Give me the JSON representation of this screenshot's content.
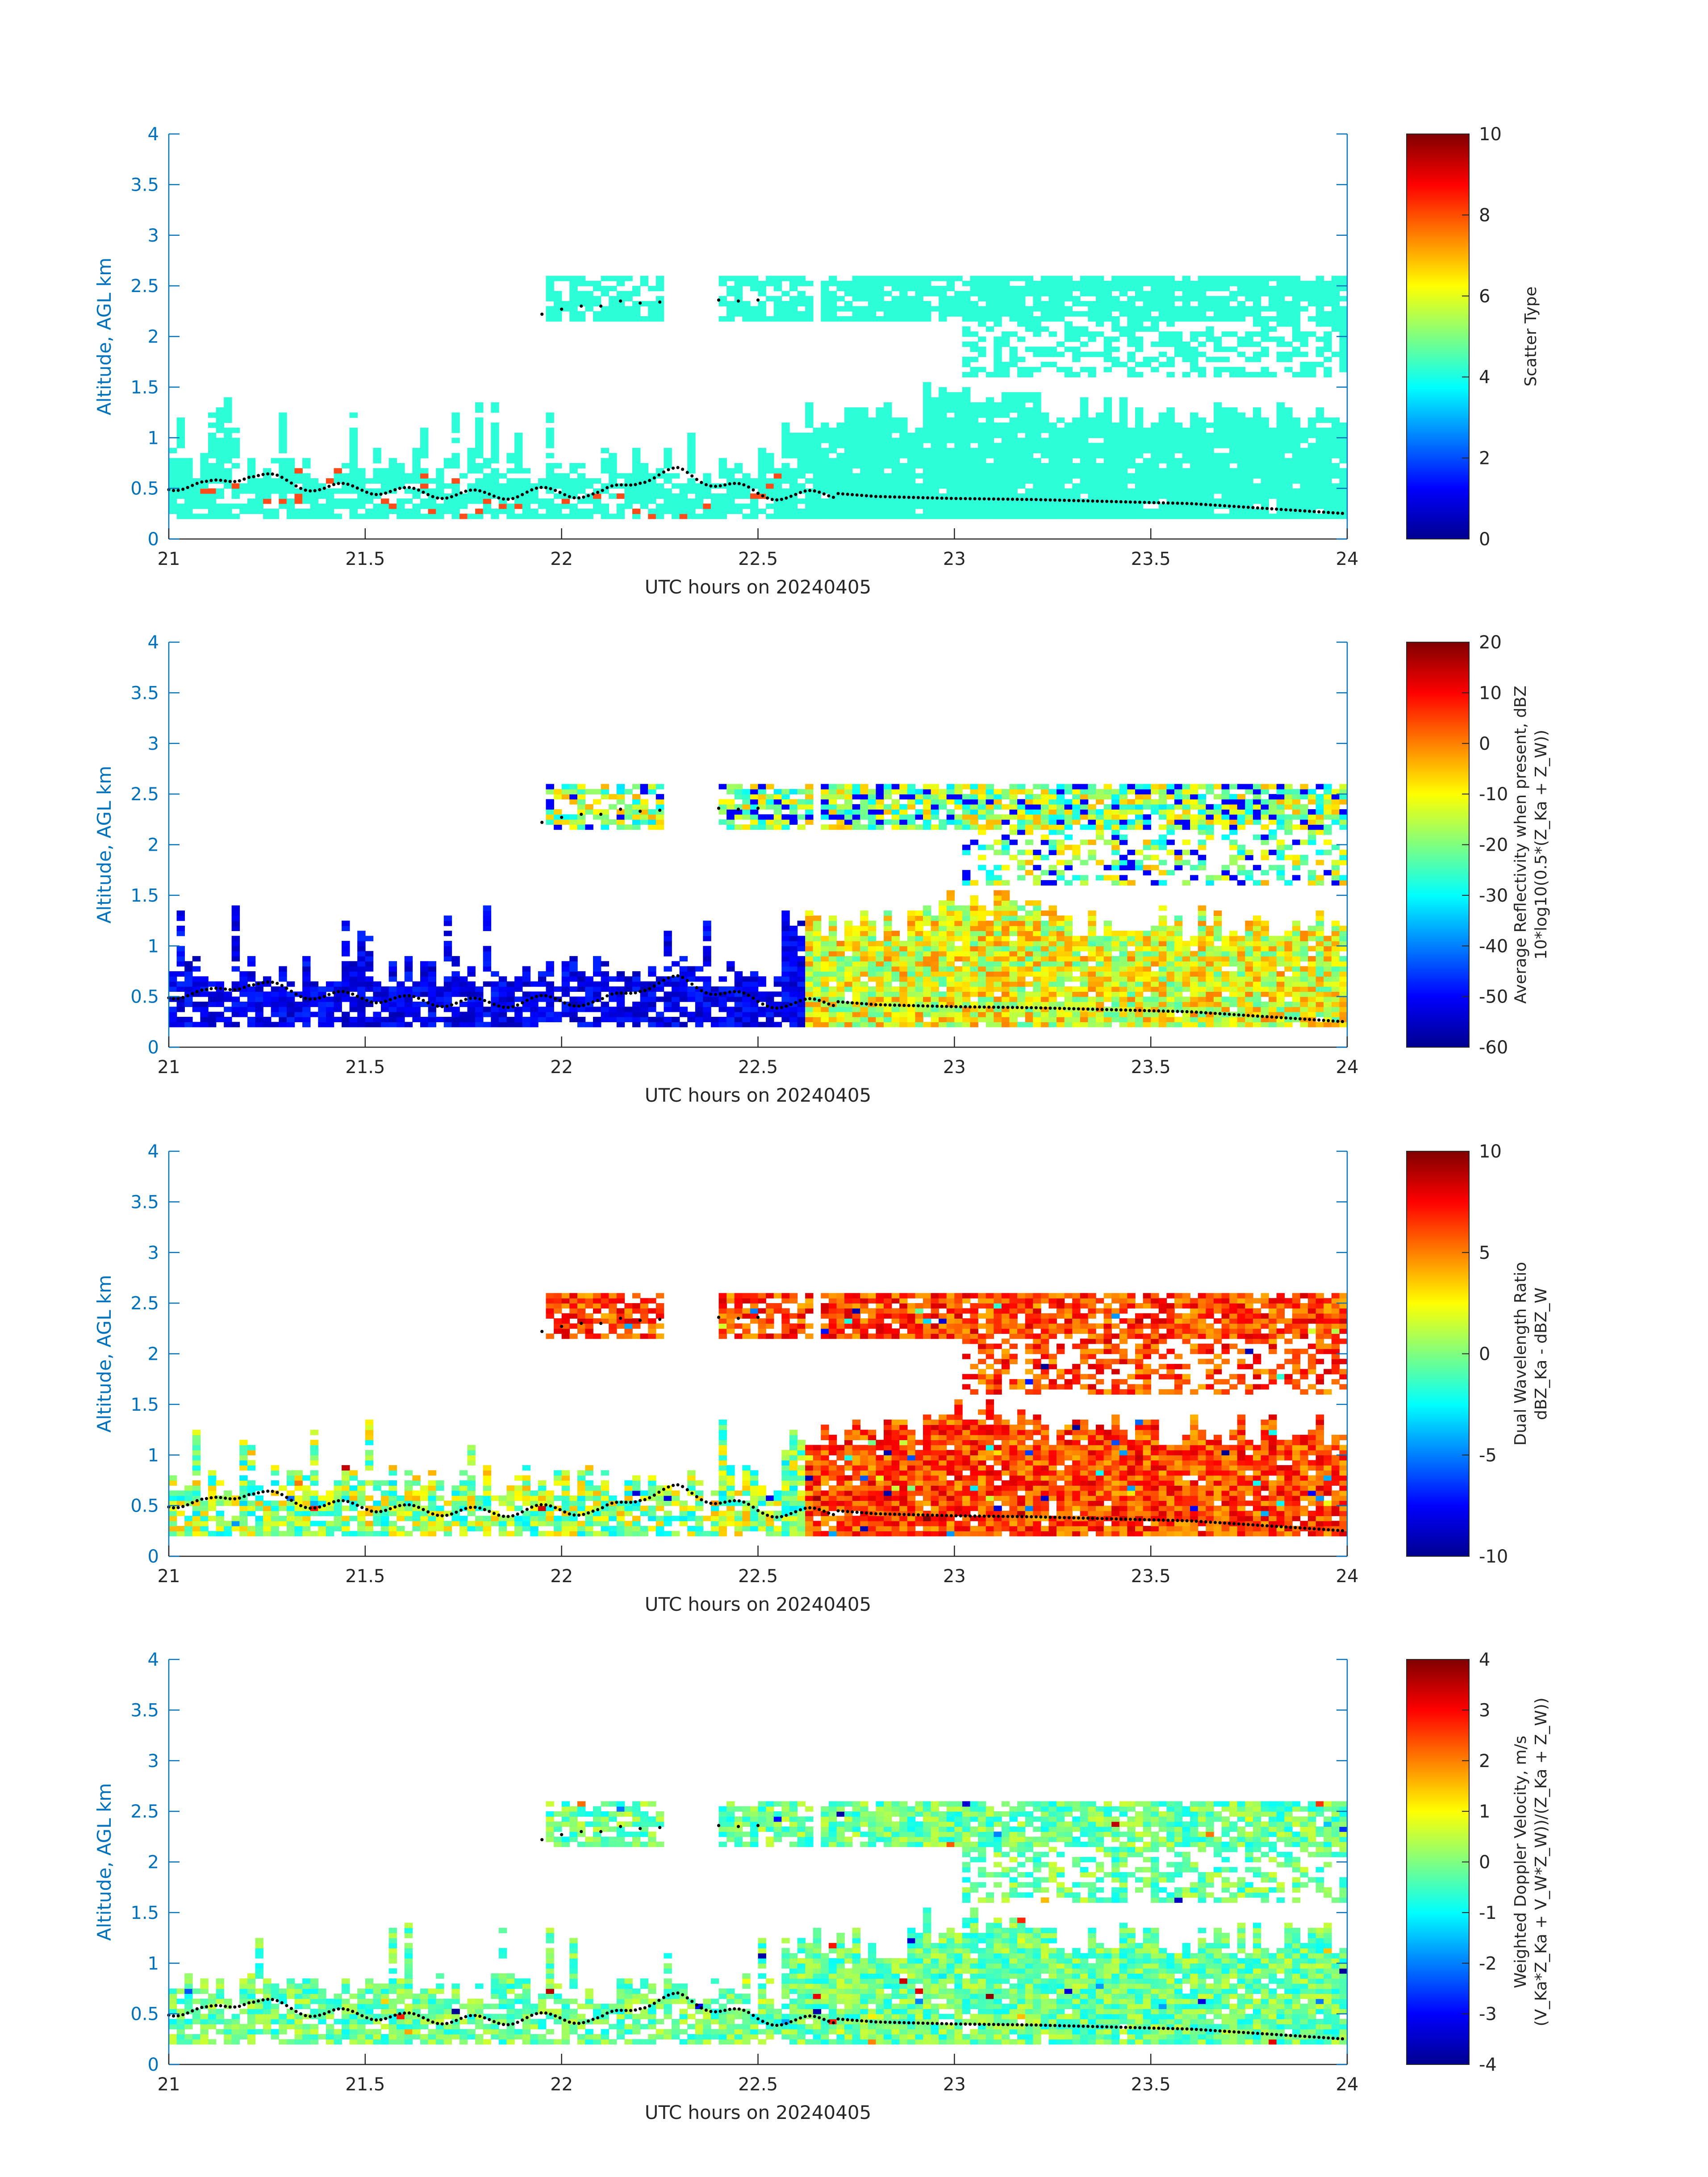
{
  "chart_data": [
    {
      "type": "heatmap",
      "xlabel": "UTC hours on 20240405",
      "ylabel": "Altitude, AGL km",
      "xlim": [
        21,
        24
      ],
      "ylim": [
        0,
        4
      ],
      "xticks": [
        "21",
        "21.5",
        "22",
        "22.5",
        "23",
        "23.5",
        "24"
      ],
      "yticks": [
        "0",
        "0.5",
        "1",
        "1.5",
        "2",
        "2.5",
        "3",
        "3.5",
        "4"
      ],
      "colorbar": {
        "label_lines": [
          "Scatter Type"
        ],
        "range": [
          0,
          10
        ],
        "ticks": [
          "0",
          "2",
          "4",
          "6",
          "8",
          "10"
        ]
      },
      "colormap": "jet",
      "dominant_value": 4
    },
    {
      "type": "heatmap",
      "xlabel": "UTC hours on 20240405",
      "ylabel": "Altitude, AGL km",
      "xlim": [
        21,
        24
      ],
      "ylim": [
        0,
        4
      ],
      "xticks": [
        "21",
        "21.5",
        "22",
        "22.5",
        "23",
        "23.5",
        "24"
      ],
      "yticks": [
        "0",
        "0.5",
        "1",
        "1.5",
        "2",
        "2.5",
        "3",
        "3.5",
        "4"
      ],
      "colorbar": {
        "label_lines": [
          "Average Reflectivity when present, dBZ",
          "10*log10(0.5*(Z_Ka + Z_W))"
        ],
        "range": [
          -60,
          20
        ],
        "ticks": [
          "-60",
          "-50",
          "-40",
          "-30",
          "-20",
          "-10",
          "0",
          "10",
          "20"
        ]
      },
      "colormap": "jet"
    },
    {
      "type": "heatmap",
      "xlabel": "UTC hours on 20240405",
      "ylabel": "Altitude, AGL km",
      "xlim": [
        21,
        24
      ],
      "ylim": [
        0,
        4
      ],
      "xticks": [
        "21",
        "21.5",
        "22",
        "22.5",
        "23",
        "23.5",
        "24"
      ],
      "yticks": [
        "0",
        "0.5",
        "1",
        "1.5",
        "2",
        "2.5",
        "3",
        "3.5",
        "4"
      ],
      "colorbar": {
        "label_lines": [
          "Dual Wavelength Ratio",
          "dBZ_Ka - dBZ_W"
        ],
        "range": [
          -10,
          10
        ],
        "ticks": [
          "-10",
          "-5",
          "0",
          "5",
          "10"
        ]
      },
      "colormap": "jet"
    },
    {
      "type": "heatmap",
      "xlabel": "UTC hours on 20240405",
      "ylabel": "Altitude, AGL km",
      "xlim": [
        21,
        24
      ],
      "ylim": [
        0,
        4
      ],
      "xticks": [
        "21",
        "21.5",
        "22",
        "22.5",
        "23",
        "23.5",
        "24"
      ],
      "yticks": [
        "0",
        "0.5",
        "1",
        "1.5",
        "2",
        "2.5",
        "3",
        "3.5",
        "4"
      ],
      "colorbar": {
        "label_lines": [
          "Weighted Doppler Velocity, m/s",
          "(V_Ka*Z_Ka + V_W*Z_W))/(Z_Ka + Z_W))"
        ],
        "range": [
          -4,
          4
        ],
        "ticks": [
          "-4",
          "-3",
          "-2",
          "-1",
          "0",
          "1",
          "2",
          "3",
          "4"
        ]
      },
      "colormap": "jet"
    }
  ],
  "cloud_base_km": {
    "x": [
      21.0,
      21.1,
      21.2,
      21.3,
      21.4,
      21.5,
      21.6,
      21.7,
      21.8,
      21.9,
      22.0,
      22.1,
      22.2,
      22.3,
      22.4,
      22.5,
      22.6,
      22.7,
      22.8,
      22.9,
      23.0,
      23.2,
      23.4,
      23.6,
      23.8,
      24.0
    ],
    "y": [
      0.53,
      0.52,
      0.65,
      0.56,
      0.5,
      0.5,
      0.46,
      0.45,
      0.43,
      0.45,
      0.47,
      0.43,
      0.6,
      0.66,
      0.55,
      0.45,
      0.42,
      0.45,
      0.42,
      0.41,
      0.4,
      0.39,
      0.37,
      0.35,
      0.3,
      0.25
    ]
  },
  "upper_layer_base_km": {
    "x": [
      21.95,
      22.0,
      22.05,
      22.1,
      22.15,
      22.2,
      22.25,
      22.4,
      22.45,
      22.5
    ],
    "y": [
      2.22,
      2.27,
      2.3,
      2.3,
      2.35,
      2.33,
      2.34,
      2.36,
      2.35,
      2.36
    ]
  },
  "colors": {
    "axis": "#0072BD",
    "text": "#262626",
    "cloud_mask": "#2cffd8",
    "dots": "#000000"
  }
}
